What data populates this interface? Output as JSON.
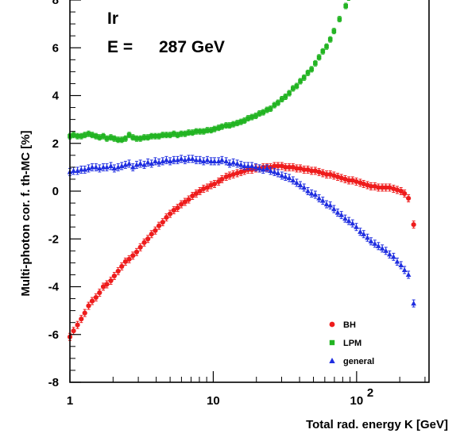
{
  "chart_data": {
    "type": "scatter",
    "annotation_material": "Ir",
    "annotation_energy_label": "E =",
    "annotation_energy_value": "287 GeV",
    "xlabel": "Total rad. energy K [GeV]",
    "ylabel": "Multi-photon cor. f. th-MC [%]",
    "x_scale": "log",
    "xlim": [
      1,
      320
    ],
    "ylim": [
      -8,
      8
    ],
    "x_ticks": [
      {
        "value": 1,
        "base": "1",
        "exp": ""
      },
      {
        "value": 10,
        "base": "10",
        "exp": ""
      },
      {
        "value": 100,
        "base": "10",
        "exp": "2"
      }
    ],
    "y_ticks": [
      -8,
      -6,
      -4,
      -2,
      0,
      2,
      4,
      6,
      8
    ],
    "legend_position": "bottom-right",
    "grid": false,
    "series": [
      {
        "name": "BH",
        "color": "#ee1c1c",
        "marker": "circle",
        "points": [
          [
            1.0,
            -6.1
          ],
          [
            1.06,
            -5.85
          ],
          [
            1.13,
            -5.6
          ],
          [
            1.2,
            -5.35
          ],
          [
            1.27,
            -5.1
          ],
          [
            1.35,
            -4.8
          ],
          [
            1.43,
            -4.6
          ],
          [
            1.52,
            -4.45
          ],
          [
            1.61,
            -4.25
          ],
          [
            1.71,
            -4.0
          ],
          [
            1.81,
            -3.9
          ],
          [
            1.93,
            -3.75
          ],
          [
            2.04,
            -3.55
          ],
          [
            2.17,
            -3.35
          ],
          [
            2.3,
            -3.15
          ],
          [
            2.44,
            -2.95
          ],
          [
            2.59,
            -2.85
          ],
          [
            2.75,
            -2.7
          ],
          [
            2.92,
            -2.55
          ],
          [
            3.1,
            -2.35
          ],
          [
            3.3,
            -2.15
          ],
          [
            3.5,
            -2.0
          ],
          [
            3.71,
            -1.8
          ],
          [
            3.94,
            -1.65
          ],
          [
            4.18,
            -1.45
          ],
          [
            4.44,
            -1.3
          ],
          [
            4.71,
            -1.1
          ],
          [
            5.0,
            -0.95
          ],
          [
            5.31,
            -0.8
          ],
          [
            5.64,
            -0.7
          ],
          [
            5.98,
            -0.55
          ],
          [
            6.35,
            -0.45
          ],
          [
            6.74,
            -0.35
          ],
          [
            7.16,
            -0.2
          ],
          [
            7.6,
            -0.1
          ],
          [
            8.07,
            0.0
          ],
          [
            8.56,
            0.1
          ],
          [
            9.09,
            0.15
          ],
          [
            9.65,
            0.25
          ],
          [
            10.2,
            0.3
          ],
          [
            10.9,
            0.4
          ],
          [
            11.5,
            0.5
          ],
          [
            12.3,
            0.6
          ],
          [
            13.0,
            0.65
          ],
          [
            13.8,
            0.7
          ],
          [
            14.7,
            0.75
          ],
          [
            15.6,
            0.8
          ],
          [
            16.5,
            0.85
          ],
          [
            17.5,
            0.9
          ],
          [
            18.6,
            0.9
          ],
          [
            19.8,
            0.95
          ],
          [
            21.0,
            0.95
          ],
          [
            22.3,
            1.0
          ],
          [
            23.7,
            1.0
          ],
          [
            25.1,
            1.0
          ],
          [
            26.7,
            1.05
          ],
          [
            28.3,
            1.05
          ],
          [
            30.1,
            1.05
          ],
          [
            31.9,
            1.0
          ],
          [
            33.9,
            1.0
          ],
          [
            36.0,
            1.0
          ],
          [
            38.2,
            0.95
          ],
          [
            40.5,
            0.95
          ],
          [
            43.0,
            0.9
          ],
          [
            45.7,
            0.9
          ],
          [
            48.5,
            0.85
          ],
          [
            51.5,
            0.85
          ],
          [
            54.7,
            0.8
          ],
          [
            58.1,
            0.75
          ],
          [
            61.7,
            0.7
          ],
          [
            65.5,
            0.7
          ],
          [
            69.5,
            0.65
          ],
          [
            73.8,
            0.6
          ],
          [
            78.3,
            0.55
          ],
          [
            83.2,
            0.5
          ],
          [
            88.3,
            0.45
          ],
          [
            93.7,
            0.45
          ],
          [
            99.5,
            0.4
          ],
          [
            106,
            0.35
          ],
          [
            112,
            0.3
          ],
          [
            119,
            0.25
          ],
          [
            126,
            0.2
          ],
          [
            134,
            0.2
          ],
          [
            142,
            0.15
          ],
          [
            151,
            0.15
          ],
          [
            160,
            0.15
          ],
          [
            170,
            0.15
          ],
          [
            181,
            0.1
          ],
          [
            192,
            0.05
          ],
          [
            204,
            0.0
          ],
          [
            216,
            -0.1
          ],
          [
            230,
            -0.3
          ],
          [
            250,
            -1.4
          ]
        ]
      },
      {
        "name": "LPM",
        "color": "#22b422",
        "marker": "square",
        "points": [
          [
            1.0,
            2.3
          ],
          [
            1.06,
            2.35
          ],
          [
            1.13,
            2.3
          ],
          [
            1.2,
            2.3
          ],
          [
            1.27,
            2.35
          ],
          [
            1.35,
            2.4
          ],
          [
            1.43,
            2.35
          ],
          [
            1.52,
            2.3
          ],
          [
            1.61,
            2.25
          ],
          [
            1.71,
            2.3
          ],
          [
            1.81,
            2.2
          ],
          [
            1.93,
            2.25
          ],
          [
            2.04,
            2.2
          ],
          [
            2.17,
            2.15
          ],
          [
            2.3,
            2.15
          ],
          [
            2.44,
            2.2
          ],
          [
            2.59,
            2.35
          ],
          [
            2.75,
            2.25
          ],
          [
            2.92,
            2.2
          ],
          [
            3.1,
            2.2
          ],
          [
            3.3,
            2.25
          ],
          [
            3.5,
            2.25
          ],
          [
            3.71,
            2.3
          ],
          [
            3.94,
            2.3
          ],
          [
            4.18,
            2.3
          ],
          [
            4.44,
            2.35
          ],
          [
            4.71,
            2.35
          ],
          [
            5.0,
            2.35
          ],
          [
            5.31,
            2.4
          ],
          [
            5.64,
            2.35
          ],
          [
            5.98,
            2.4
          ],
          [
            6.35,
            2.4
          ],
          [
            6.74,
            2.45
          ],
          [
            7.16,
            2.45
          ],
          [
            7.6,
            2.5
          ],
          [
            8.07,
            2.5
          ],
          [
            8.56,
            2.5
          ],
          [
            9.09,
            2.55
          ],
          [
            9.65,
            2.55
          ],
          [
            10.2,
            2.6
          ],
          [
            10.9,
            2.65
          ],
          [
            11.5,
            2.7
          ],
          [
            12.3,
            2.75
          ],
          [
            13.0,
            2.75
          ],
          [
            13.8,
            2.8
          ],
          [
            14.7,
            2.85
          ],
          [
            15.6,
            2.9
          ],
          [
            16.5,
            2.95
          ],
          [
            17.5,
            3.05
          ],
          [
            18.6,
            3.1
          ],
          [
            19.8,
            3.15
          ],
          [
            21.0,
            3.25
          ],
          [
            22.3,
            3.3
          ],
          [
            23.7,
            3.4
          ],
          [
            25.1,
            3.45
          ],
          [
            26.7,
            3.6
          ],
          [
            28.3,
            3.7
          ],
          [
            30.1,
            3.85
          ],
          [
            31.9,
            3.95
          ],
          [
            33.9,
            4.1
          ],
          [
            36.0,
            4.3
          ],
          [
            38.2,
            4.4
          ],
          [
            40.5,
            4.6
          ],
          [
            43.0,
            4.75
          ],
          [
            45.7,
            4.95
          ],
          [
            48.5,
            5.1
          ],
          [
            51.5,
            5.35
          ],
          [
            54.7,
            5.6
          ],
          [
            58.1,
            5.85
          ],
          [
            61.7,
            6.05
          ],
          [
            65.5,
            6.35
          ],
          [
            69.5,
            6.7
          ],
          [
            76.0,
            7.2
          ],
          [
            84.0,
            7.75
          ],
          [
            88.0,
            8.1
          ]
        ]
      },
      {
        "name": "general",
        "color": "#1f2ee0",
        "marker": "triangle",
        "points": [
          [
            1.0,
            0.8
          ],
          [
            1.06,
            0.85
          ],
          [
            1.13,
            0.85
          ],
          [
            1.2,
            0.9
          ],
          [
            1.27,
            0.9
          ],
          [
            1.35,
            0.95
          ],
          [
            1.43,
            1.0
          ],
          [
            1.52,
            1.0
          ],
          [
            1.61,
            0.95
          ],
          [
            1.71,
            1.0
          ],
          [
            1.81,
            1.0
          ],
          [
            1.93,
            1.05
          ],
          [
            2.04,
            0.95
          ],
          [
            2.17,
            1.0
          ],
          [
            2.3,
            1.05
          ],
          [
            2.44,
            1.1
          ],
          [
            2.59,
            1.15
          ],
          [
            2.75,
            1.0
          ],
          [
            2.92,
            1.1
          ],
          [
            3.1,
            1.15
          ],
          [
            3.3,
            1.1
          ],
          [
            3.5,
            1.2
          ],
          [
            3.71,
            1.15
          ],
          [
            3.94,
            1.25
          ],
          [
            4.18,
            1.2
          ],
          [
            4.44,
            1.25
          ],
          [
            4.71,
            1.3
          ],
          [
            5.0,
            1.25
          ],
          [
            5.31,
            1.3
          ],
          [
            5.64,
            1.3
          ],
          [
            5.98,
            1.35
          ],
          [
            6.35,
            1.3
          ],
          [
            6.74,
            1.35
          ],
          [
            7.16,
            1.35
          ],
          [
            7.6,
            1.3
          ],
          [
            8.07,
            1.3
          ],
          [
            8.56,
            1.25
          ],
          [
            9.09,
            1.3
          ],
          [
            9.65,
            1.25
          ],
          [
            10.2,
            1.25
          ],
          [
            10.9,
            1.25
          ],
          [
            11.5,
            1.3
          ],
          [
            12.3,
            1.25
          ],
          [
            13.0,
            1.15
          ],
          [
            13.8,
            1.2
          ],
          [
            14.7,
            1.15
          ],
          [
            15.6,
            1.1
          ],
          [
            16.5,
            1.05
          ],
          [
            17.5,
            1.05
          ],
          [
            18.6,
            1.05
          ],
          [
            19.8,
            1.0
          ],
          [
            21.0,
            0.95
          ],
          [
            22.3,
            0.9
          ],
          [
            23.7,
            0.95
          ],
          [
            25.1,
            0.85
          ],
          [
            26.7,
            0.8
          ],
          [
            28.3,
            0.75
          ],
          [
            30.1,
            0.65
          ],
          [
            31.9,
            0.6
          ],
          [
            33.9,
            0.55
          ],
          [
            36.0,
            0.45
          ],
          [
            38.2,
            0.35
          ],
          [
            40.5,
            0.25
          ],
          [
            43.0,
            0.15
          ],
          [
            45.7,
            0.0
          ],
          [
            48.5,
            -0.1
          ],
          [
            51.5,
            -0.15
          ],
          [
            54.7,
            -0.3
          ],
          [
            58.1,
            -0.4
          ],
          [
            61.7,
            -0.55
          ],
          [
            65.5,
            -0.6
          ],
          [
            69.5,
            -0.75
          ],
          [
            73.8,
            -0.9
          ],
          [
            78.3,
            -1.0
          ],
          [
            83.2,
            -1.15
          ],
          [
            88.3,
            -1.25
          ],
          [
            93.7,
            -1.35
          ],
          [
            99.5,
            -1.5
          ],
          [
            106,
            -1.7
          ],
          [
            112,
            -1.8
          ],
          [
            119,
            -1.95
          ],
          [
            126,
            -2.1
          ],
          [
            134,
            -2.2
          ],
          [
            142,
            -2.3
          ],
          [
            151,
            -2.4
          ],
          [
            160,
            -2.5
          ],
          [
            170,
            -2.65
          ],
          [
            181,
            -2.75
          ],
          [
            192,
            -2.95
          ],
          [
            204,
            -3.1
          ],
          [
            216,
            -3.3
          ],
          [
            230,
            -3.5
          ],
          [
            250,
            -4.7
          ]
        ]
      }
    ]
  }
}
